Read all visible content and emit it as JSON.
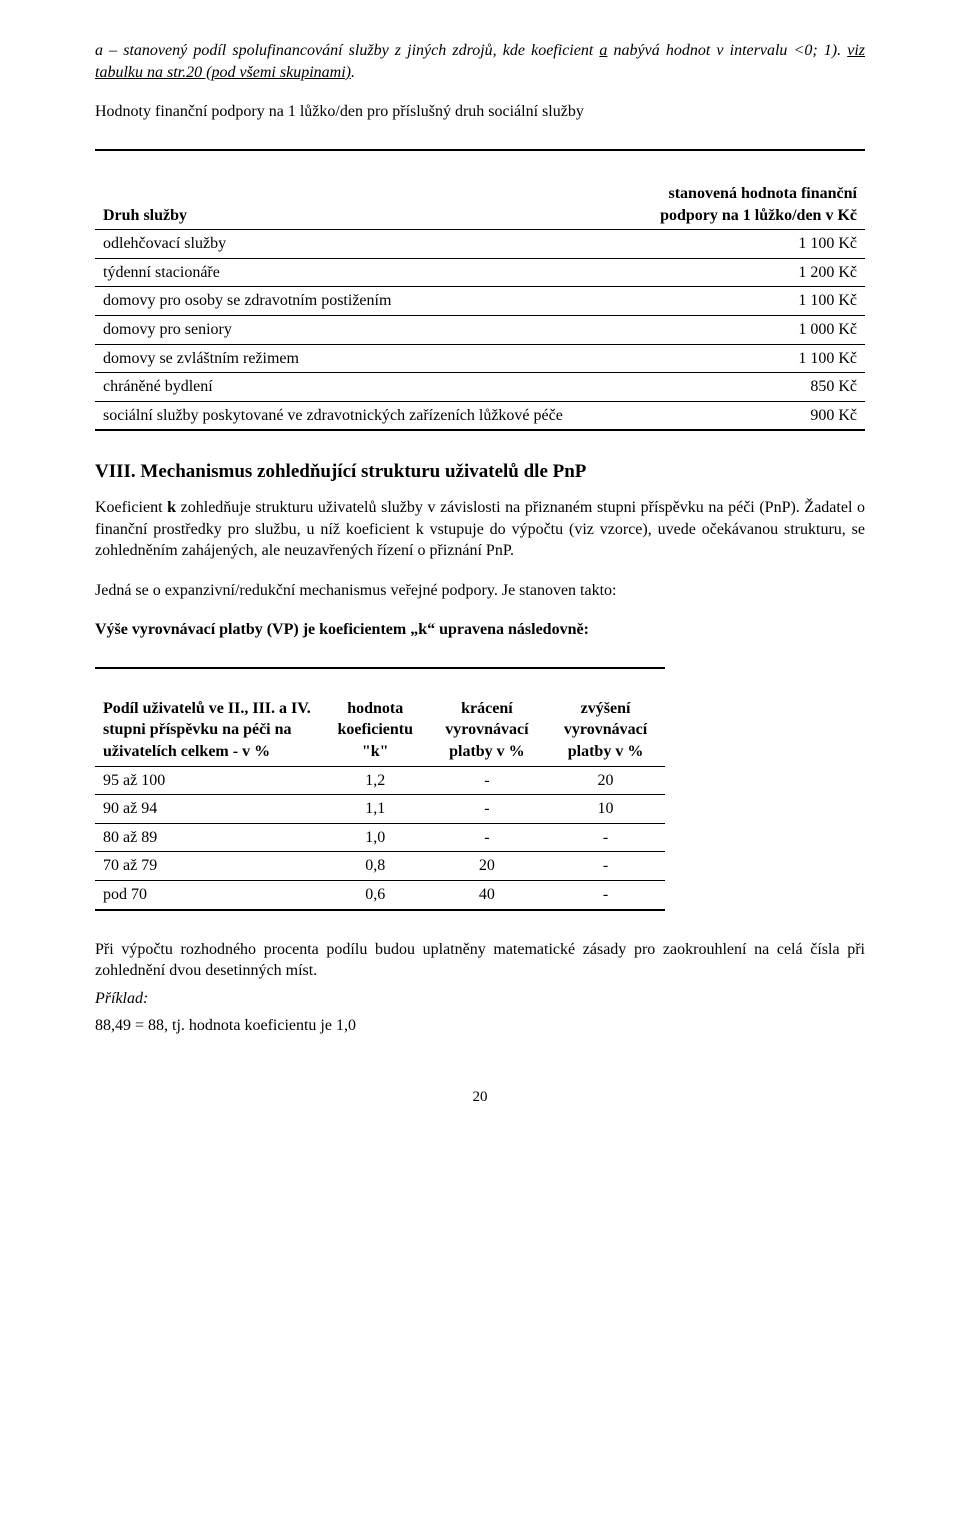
{
  "intro": {
    "line1_pre": "a – stanovený podíl spolufinancování služby z jiných zdrojů, kde koeficient ",
    "line1_a": "a",
    "line1_mid": " nabývá hodnot v intervalu <0; 1). ",
    "line1_link": "viz tabulku na str.20 (pod všemi skupinami)",
    "line1_post": ".",
    "line2": "Hodnoty finanční podpory na 1 lůžko/den pro příslušný druh sociální služby"
  },
  "table1": {
    "head_left": "Druh služby",
    "head_right": "stanovená hodnota finanční podpory na 1 lůžko/den v Kč",
    "rows": [
      {
        "label": "odlehčovací služby",
        "value": "1 100 Kč"
      },
      {
        "label": "týdenní stacionáře",
        "value": "1 200 Kč"
      },
      {
        "label": "domovy pro osoby se zdravotním postižením",
        "value": "1 100 Kč"
      },
      {
        "label": "domovy pro seniory",
        "value": "1 000 Kč"
      },
      {
        "label": "domovy se zvláštním režimem",
        "value": "1 100 Kč"
      },
      {
        "label": "chráněné bydlení",
        "value": "850 Kč"
      },
      {
        "label": "sociální služby poskytované ve zdravotnických zařízeních lůžkové péče",
        "value": "900 Kč"
      }
    ]
  },
  "section8": {
    "title": "VIII. Mechanismus zohledňující strukturu uživatelů dle PnP",
    "p1_pre": "Koeficient ",
    "p1_k": "k",
    "p1_post": " zohledňuje strukturu uživatelů služby v závislosti na přiznaném stupni příspěvku na péči (PnP). Žadatel o finanční prostředky pro službu, u níž koeficient k vstupuje do výpočtu (viz vzorce), uvede očekávanou strukturu, se zohledněním zahájených, ale neuzavřených řízení o přiznání PnP.",
    "p2": "Jedná se o expanzivní/redukční mechanismus veřejné podpory. Je stanoven takto:",
    "p3": "Výše vyrovnávací platby (VP) je koeficientem „k“ upravena následovně:"
  },
  "table2": {
    "h0": "Podíl uživatelů ve II., III. a IV. stupni příspěvku na péči na uživatelích celkem - v %",
    "h1": "hodnota koeficientu \"k\"",
    "h2": "krácení vyrovnávací platby v %",
    "h3": "zvýšení vyrovnávací platby v %",
    "rows": [
      {
        "c0": "95 až 100",
        "c1": "1,2",
        "c2": "-",
        "c3": "20"
      },
      {
        "c0": "90 až 94",
        "c1": "1,1",
        "c2": "-",
        "c3": "10"
      },
      {
        "c0": "80 až 89",
        "c1": "1,0",
        "c2": "-",
        "c3": "-"
      },
      {
        "c0": "70 až 79",
        "c1": "0,8",
        "c2": "20",
        "c3": "-"
      },
      {
        "c0": "pod 70",
        "c1": "0,6",
        "c2": "40",
        "c3": "-"
      }
    ]
  },
  "closing": {
    "p1": "Při výpočtu rozhodného procenta podílu budou uplatněny matematické zásady pro zaokrouhlení na celá čísla při zohlednění dvou desetinných míst.",
    "example_label": "Příklad:",
    "example_line": "88,49 = 88, tj. hodnota koeficientu je 1,0"
  },
  "page_number": "20"
}
